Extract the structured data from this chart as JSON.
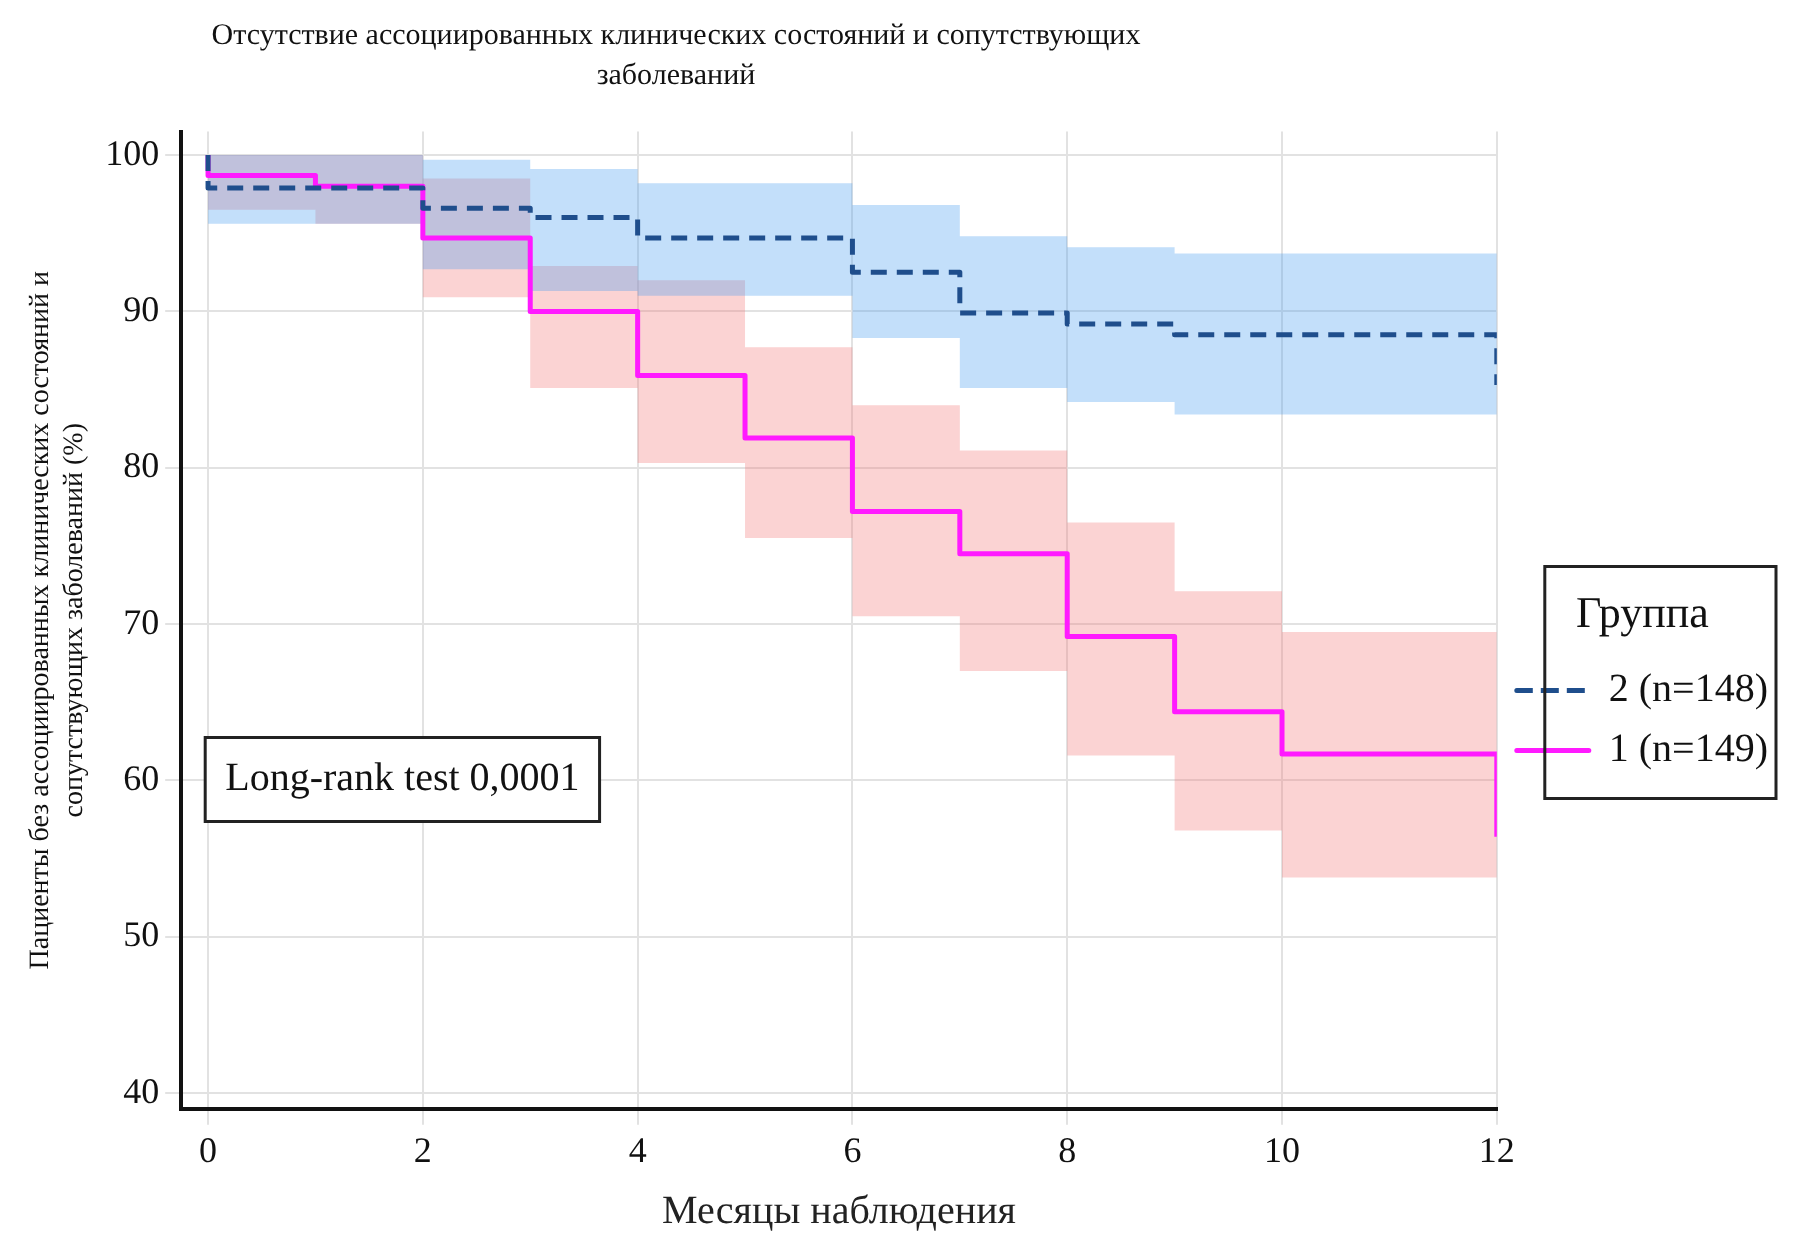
{
  "chart_data": {
    "type": "step",
    "title": "Отсутствие ассоциированных клинических состояний и сопутствующих заболеваний",
    "xlabel": "Месяцы наблюдения",
    "ylabel": "Пациенты без ассоциированных клинических состояний и сопутствующих заболеваний (%)",
    "legend_title": "Группа",
    "annotations": [
      "Long-rank test 0,0001"
    ],
    "x": [
      0,
      1,
      2,
      3,
      4,
      5,
      6,
      7,
      8,
      9,
      10,
      11,
      12,
      12
    ],
    "series": [
      {
        "name": "2 (n=148)",
        "color": "#1f4e8c",
        "line_style": "dashed",
        "values": [
          100,
          97.9,
          97.9,
          96.6,
          96.0,
          94.7,
          94.7,
          92.5,
          89.9,
          89.2,
          88.5,
          88.5,
          88.5,
          85.3
        ],
        "lower": [
          100,
          95.6,
          95.6,
          92.7,
          91.3,
          91.0,
          91.0,
          88.3,
          85.1,
          84.2,
          83.4,
          83.4,
          83.4,
          null
        ],
        "upper": [
          100,
          100,
          100,
          99.7,
          99.1,
          98.2,
          98.2,
          96.8,
          94.8,
          94.1,
          93.7,
          93.7,
          93.7,
          null
        ]
      },
      {
        "name": "1 (n=149)",
        "color": "#ff1aff",
        "line_style": "solid",
        "values": [
          100,
          98.7,
          98.0,
          94.7,
          90.0,
          85.9,
          81.9,
          77.2,
          74.5,
          69.2,
          64.4,
          61.7,
          61.7,
          56.4
        ],
        "lower": [
          100,
          96.5,
          95.6,
          90.9,
          85.1,
          80.3,
          75.5,
          70.5,
          67.0,
          61.6,
          56.8,
          53.8,
          53.8,
          null
        ],
        "upper": [
          100,
          100,
          100,
          98.5,
          92.9,
          92.0,
          87.7,
          84.0,
          81.1,
          76.5,
          72.1,
          69.5,
          69.5,
          null
        ]
      }
    ],
    "xlim": [
      -0.25,
      12
    ],
    "xticks": [
      0,
      2,
      4,
      6,
      8,
      10,
      12
    ],
    "ylim": [
      39,
      101.5
    ],
    "yticks": [
      40,
      50,
      60,
      70,
      80,
      90,
      100
    ],
    "grid": true,
    "legend": "right"
  }
}
